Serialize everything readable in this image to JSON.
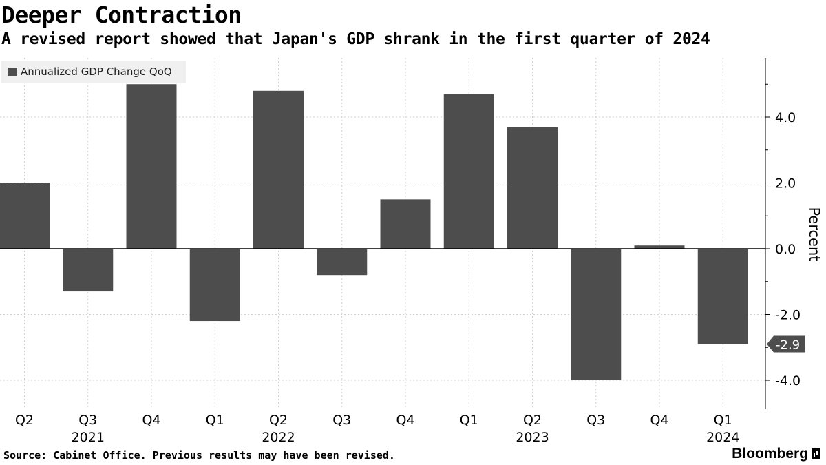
{
  "header": {
    "title": "Deeper Contraction",
    "subtitle": "A revised report showed that Japan's GDP shrank in the first quarter of 2024"
  },
  "legend": {
    "label": "Annualized GDP Change QoQ",
    "color": "#4d4d4d"
  },
  "footer": {
    "source": "Source: Cabinet Office. Previous results may have been revised.",
    "brand": "Bloomberg"
  },
  "chart_data": {
    "type": "bar",
    "title": "Deeper Contraction",
    "ylabel": "Percent",
    "xlabel": "",
    "ylim": [
      -4.9,
      5.8
    ],
    "yticks": [
      -4.0,
      -2.0,
      0.0,
      2.0,
      4.0
    ],
    "ytick_labels": [
      "-4.0",
      "-2.0",
      "0.0",
      "2.0",
      "4.0"
    ],
    "categories": [
      "Q2",
      "Q3",
      "Q4",
      "Q1",
      "Q2",
      "Q3",
      "Q4",
      "Q1",
      "Q2",
      "Q3",
      "Q4",
      "Q1"
    ],
    "year_labels": [
      {
        "index": 1,
        "label": "2021"
      },
      {
        "index": 4,
        "label": "2022"
      },
      {
        "index": 8,
        "label": "2023"
      },
      {
        "index": 11,
        "label": "2024"
      }
    ],
    "series": [
      {
        "name": "Annualized GDP Change QoQ",
        "values": [
          2.0,
          -1.3,
          5.0,
          -2.2,
          4.8,
          -0.8,
          1.5,
          4.7,
          3.7,
          -4.0,
          0.1,
          -2.9
        ]
      }
    ],
    "last_value_label": "-2.9",
    "bar_color": "#4d4d4d",
    "grid": true,
    "y_axis_position": "right"
  }
}
